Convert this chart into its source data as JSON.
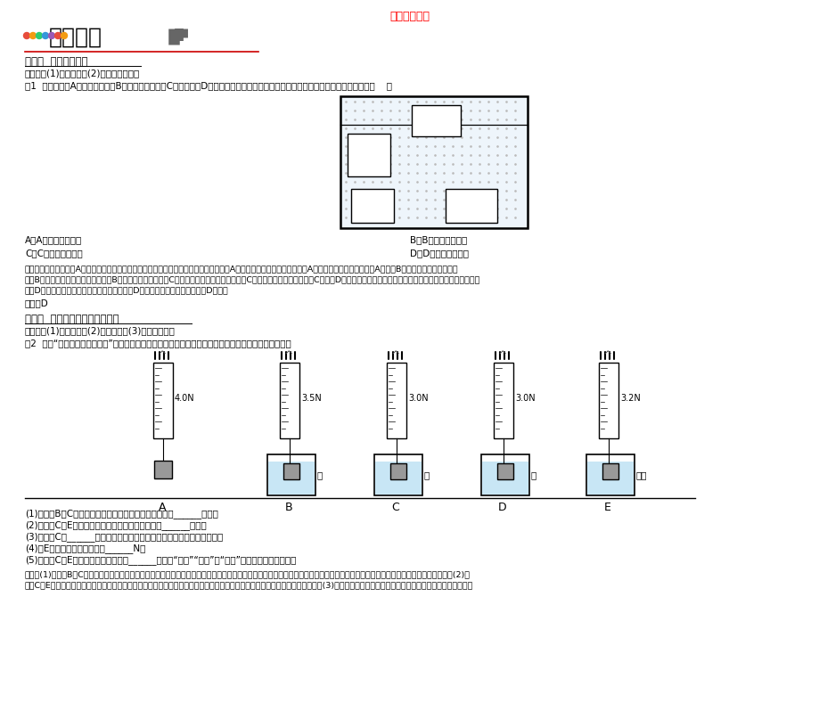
{
  "title": "章末知识汇总",
  "title_color": "#FF0000",
  "background_color": "#FFFFFF",
  "header_text": "题型必会",
  "section1_title": "类型一  浮力概念讲析",
  "section1_points": "命题点：(1)浮力概念；(2)浮力的三要素。",
  "example1_text": "例1  如图所示，A漂浮在水面上，B悬浮在水中静止，C沉入水底，D是容器自身凸起的一部分，关于它们所受浮力的情况说法错误的是（    ）",
  "optA": "A．A物体一定受浮力",
  "optB": "B．B物体一定受浮力",
  "optC": "C．C物体一定受浮力",
  "optD": "D．D物体一定受浮力",
  "analysis1_lines": [
    "解析：由图可知，水对A物体上表面没有受到水的压力，但下表面受到水的压力，因此水对A物体上下表面产生了的压力差，A物体受浮力的作用，故选项A正确；B物体上下表面产生的压力",
    "差，B物体一定受浮力的作用，故选项B正确；由图可知，水对C物体上下表面产生了的压力差，C物体受浮力的作用，故选项C正确；D物体上表面受到水的压力，但下表面没有受到水的压力，因此",
    "水对D物体只有向下的压力，没有向上的压力，D物体不受浮力的作用，故选项D错误。"
  ],
  "answer": "答案：D",
  "section2_title": "类型二  探究影响浮力大小的因素",
  "section2_points": "命题点：(1)实验原理；(2)实验步骤；(3)实验结论等。",
  "example2_text": "例2  探究“影响浮力大小的因素”时，小红做了如图所示的实验。请你根据她的实验探究，回答下列问题：",
  "labels": [
    "A",
    "B",
    "C",
    "D",
    "E"
  ],
  "values": [
    "4.0N",
    "3.5N",
    "3.0N",
    "3.0N",
    "3.2N"
  ],
  "has_beaker": [
    false,
    true,
    true,
    true,
    true
  ],
  "liquid_labels": [
    "",
    "水",
    "水",
    "水",
    "酒精"
  ],
  "questions": [
    "(1)比较图B和C可知，物体受到的浮力大小与排开液体的______有关。",
    "(2)比较图C和E可知，物体受到的浮力大小与液体的______有关。",
    "(3)比较图C和______可知，浮力的大小与物体浸没在液体中的深度无关。",
    "(4)图E中物体受到浮力大小为______N。",
    "(5)比较图C和E可知，水对杯底的压强______（选填“大于”“小于”或“等于”）酒精对杯底的压强。"
  ],
  "analysis2_lines": [
    "解析：(1)比较图B和C可知，物体浸入液体中的体积不同，即物体排开液体的体积不同，弹簧测力计的示数不同，表示浮力不同，由此可知，物体受到的浮力大小与排开液体的体积有关。(2)比",
    "较图C和E可知，物体排开液体的体积相同，液体的密度不同，浮力大小不同，由此可知，物体受到的浮力大小与液体的密度有关。(3)要探究浮力的大小与物体浸没在液体中的深度的关系，必须控"
  ]
}
